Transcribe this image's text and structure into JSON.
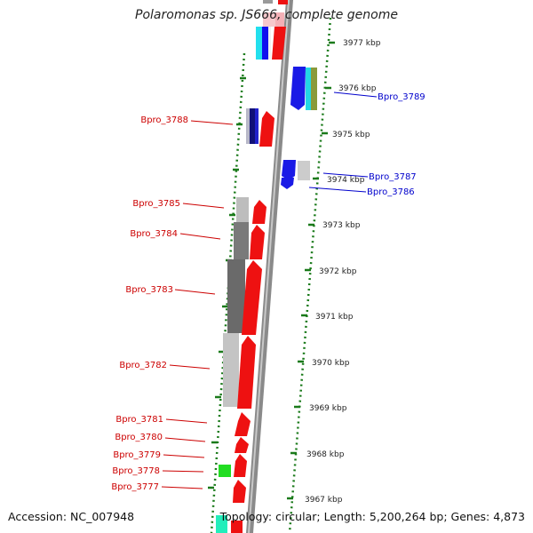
{
  "title": "Polaromonas sp. JS666, complete genome",
  "footer": {
    "accession": "Accession: NC_007948",
    "topology": "Topology: circular",
    "length": "Length: 5,200,264 bp",
    "genes": "Genes: 4,873"
  },
  "ruler_labels": [
    "3977 kbp",
    "3976 kbp",
    "3975 kbp",
    "3974 kbp",
    "3973 kbp",
    "3972 kbp",
    "3971 kbp",
    "3970 kbp",
    "3969 kbp",
    "3968 kbp",
    "3967 kbp"
  ],
  "reverse_gene_labels": [
    "Bpro_3788",
    "Bpro_3785",
    "Bpro_3784",
    "Bpro_3783",
    "Bpro_3782",
    "Bpro_3781",
    "Bpro_3780",
    "Bpro_3779",
    "Bpro_3778",
    "Bpro_3777"
  ],
  "forward_gene_labels": [
    "Bpro_3789",
    "Bpro_3787",
    "Bpro_3786"
  ],
  "colors": {
    "reverse_label": "#cc0000",
    "forward_label": "#0000cc",
    "ruler": "#1a7a1a",
    "backbone": "#8a8a8a"
  }
}
